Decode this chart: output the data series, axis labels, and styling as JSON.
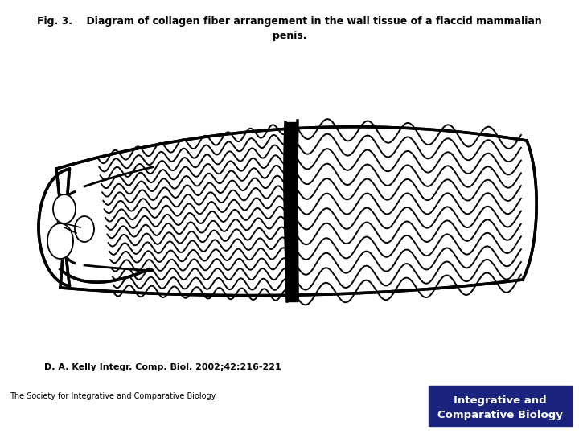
{
  "title_line1": "Fig. 3.    Diagram of collagen fiber arrangement in the wall tissue of a flaccid mammalian",
  "title_line2": "penis.",
  "citation": "D. A. Kelly Integr. Comp. Biol. 2002;42:216-221",
  "society": "The Society for Integrative and Comparative Biology",
  "journal_box_text1": "Integrative and",
  "journal_box_text2": "Comparative Biology",
  "journal_box_color": "#1a237e",
  "journal_text_color": "#ffffff",
  "bg_color": "#ffffff",
  "line_color": "#000000"
}
